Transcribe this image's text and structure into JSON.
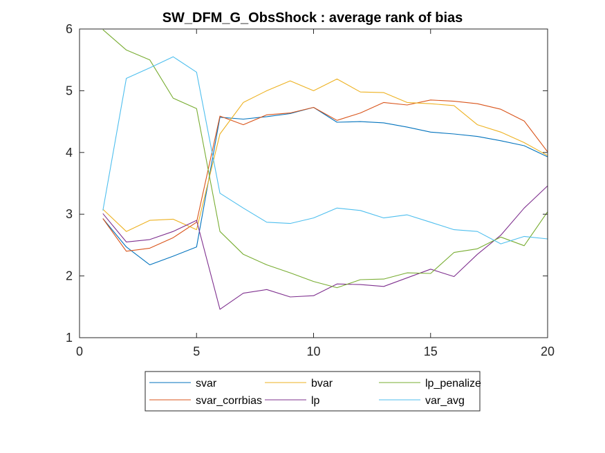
{
  "chart_data": {
    "type": "line",
    "title": "SW_DFM_G_ObsShock : average rank of bias",
    "xlabel": "",
    "ylabel": "",
    "xlim": [
      0,
      20
    ],
    "ylim": [
      1,
      6
    ],
    "xticks": [
      0,
      5,
      10,
      15,
      20
    ],
    "yticks": [
      1,
      2,
      3,
      4,
      5,
      6
    ],
    "grid": false,
    "legend_position": "bottom-outside",
    "x": [
      1,
      2,
      3,
      4,
      5,
      6,
      7,
      8,
      9,
      10,
      11,
      12,
      13,
      14,
      15,
      16,
      17,
      18,
      19,
      20
    ],
    "series": [
      {
        "name": "svar",
        "color": "#0072BD",
        "values": [
          2.93,
          2.47,
          2.18,
          2.32,
          2.47,
          4.57,
          4.54,
          4.58,
          4.63,
          4.73,
          4.49,
          4.5,
          4.48,
          4.41,
          4.33,
          4.3,
          4.26,
          4.19,
          4.11,
          3.93
        ]
      },
      {
        "name": "svar_corrbias",
        "color": "#D95319",
        "values": [
          2.93,
          2.4,
          2.45,
          2.62,
          2.87,
          4.59,
          4.45,
          4.61,
          4.64,
          4.73,
          4.52,
          4.64,
          4.81,
          4.77,
          4.85,
          4.83,
          4.79,
          4.7,
          4.51,
          4.01
        ]
      },
      {
        "name": "bvar",
        "color": "#EDB120",
        "values": [
          3.08,
          2.72,
          2.9,
          2.92,
          2.75,
          4.3,
          4.81,
          5.0,
          5.16,
          5.0,
          5.19,
          4.98,
          4.97,
          4.81,
          4.79,
          4.76,
          4.45,
          4.33,
          4.16,
          3.95
        ]
      },
      {
        "name": "lp",
        "color": "#7E2F8E",
        "values": [
          3.01,
          2.55,
          2.59,
          2.72,
          2.9,
          1.46,
          1.72,
          1.78,
          1.66,
          1.68,
          1.87,
          1.86,
          1.83,
          1.97,
          2.11,
          1.99,
          2.35,
          2.66,
          3.1,
          3.46
        ]
      },
      {
        "name": "lp_penalize",
        "color": "#77AC30",
        "values": [
          5.99,
          5.66,
          5.5,
          4.88,
          4.71,
          2.72,
          2.35,
          2.18,
          2.05,
          1.91,
          1.81,
          1.94,
          1.95,
          2.05,
          2.04,
          2.38,
          2.44,
          2.63,
          2.49,
          3.04
        ]
      },
      {
        "name": "var_avg",
        "color": "#4DBEEE",
        "values": [
          3.06,
          5.2,
          5.37,
          5.55,
          5.3,
          3.34,
          3.1,
          2.87,
          2.85,
          2.94,
          3.1,
          3.06,
          2.94,
          2.99,
          2.87,
          2.75,
          2.72,
          2.52,
          2.64,
          2.6
        ]
      }
    ],
    "legend_layout": {
      "columns": 3,
      "order": [
        "svar",
        "bvar",
        "lp_penalize",
        "svar_corrbias",
        "lp",
        "var_avg"
      ]
    }
  }
}
